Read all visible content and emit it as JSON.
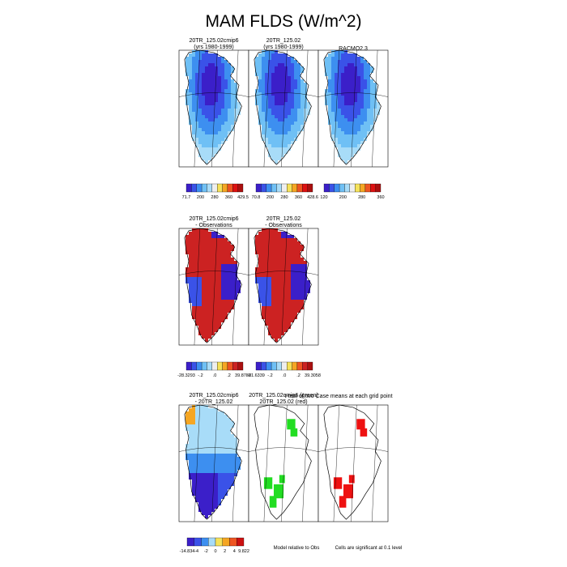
{
  "chart_data": {
    "type": "heatmap",
    "title": "MAM FLDS (W/m^2)",
    "panels": [
      {
        "id": "p1",
        "title": [
          "20TR_125.02cmip6",
          "(yrs 1980-1999)"
        ],
        "kind": "abs"
      },
      {
        "id": "p2",
        "title": [
          "20TR_125.02",
          "(yrs 1980-1999)"
        ],
        "kind": "abs"
      },
      {
        "id": "p3",
        "title": [
          "RACMO2.3"
        ],
        "kind": "abs"
      },
      {
        "id": "p4",
        "title": [
          "20TR_125.02cmip6",
          "- Observations"
        ],
        "kind": "bias"
      },
      {
        "id": "p5",
        "title": [
          "20TR_125.02",
          "- Observations"
        ],
        "kind": "bias"
      },
      {
        "id": "p6",
        "title": [
          "20TR_125.02cmip6",
          "- 20TR_125.02"
        ],
        "kind": "diff"
      },
      {
        "id": "p7",
        "title": [
          "20TR_125.02cmip6 (green)",
          "20TR_125.02 (red)"
        ],
        "kind": "sig",
        "color": "#22dd22"
      },
      {
        "id": "p8",
        "title": [],
        "kind": "sig",
        "color": "#ee1111"
      }
    ],
    "t_test_note": "t-test of two Case means at each grid point",
    "colorbars": [
      {
        "labels": [
          "71.7",
          "200",
          "280",
          "360",
          "429.5"
        ]
      },
      {
        "labels": [
          "70.8",
          "200",
          "280",
          "360",
          "428.6"
        ]
      },
      {
        "labels": [
          "120",
          "200",
          "280",
          "360"
        ]
      },
      {
        "labels": [
          "-28.3293",
          "-.2",
          ".0",
          ".2",
          "39.8788"
        ]
      },
      {
        "labels": [
          "-21.6339",
          "-.2",
          ".0",
          ".2",
          "39.3058"
        ]
      },
      {
        "labels": [
          "-14.834",
          "-4",
          "-2",
          "0",
          "2",
          "4",
          "9.822"
        ]
      }
    ],
    "bottom_notes": [
      "Model relative to Obs",
      "Cells are significant at 0.1 level"
    ],
    "colors": {
      "abs_palette": [
        "#3b1fc9",
        "#3a52e8",
        "#3d8ff0",
        "#6fc0f5",
        "#a8dcf8",
        "#eeeeee",
        "#f5e25a",
        "#f5a623",
        "#ee5522",
        "#dd1111",
        "#aa1010"
      ],
      "bias_palette": [
        "#3b1fc9",
        "#3a52e8",
        "#3d8ff0",
        "#6fc0f5",
        "#a8dcf8",
        "#eeeeee",
        "#f5e25a",
        "#f5a623",
        "#ee5522",
        "#cc2222",
        "#aa1010"
      ],
      "diff_palette": [
        "#3b1fc9",
        "#3a52e8",
        "#3d8ff0",
        "#a8dcf8",
        "#f5e25a",
        "#f5a623",
        "#ee5522",
        "#cc1111"
      ]
    }
  }
}
